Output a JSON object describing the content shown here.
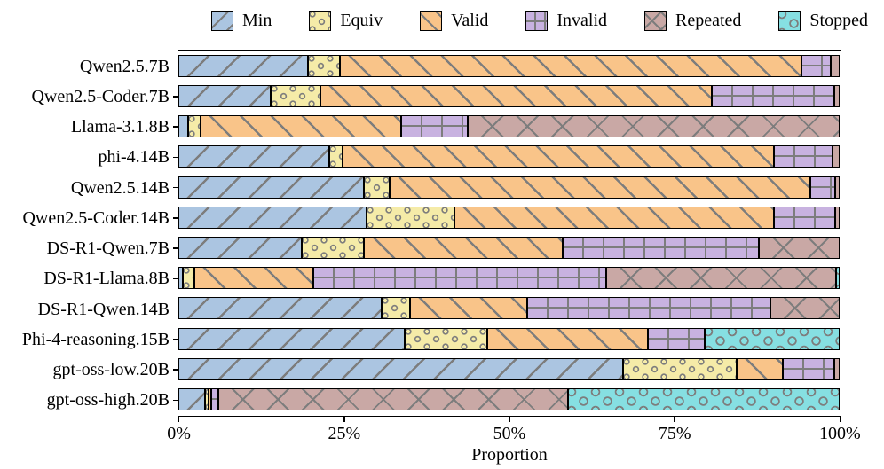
{
  "chart_data": {
    "type": "bar",
    "variant": "horizontal-stacked-percentage",
    "title": "",
    "xlabel": "Proportion",
    "ylabel": "",
    "xlim": [
      0,
      100
    ],
    "grid": false,
    "legend_position": "top",
    "x_ticks": [
      "0%",
      "25%",
      "50%",
      "75%",
      "100%"
    ],
    "x_tick_values": [
      0,
      25,
      50,
      75,
      100
    ],
    "categories": [
      "Qwen2.5.7B",
      "Qwen2.5-Coder.7B",
      "Llama-3.1.8B",
      "phi-4.14B",
      "Qwen2.5.14B",
      "Qwen2.5-Coder.14B",
      "DS-R1-Qwen.7B",
      "DS-R1-Llama.8B",
      "DS-R1-Qwen.14B",
      "Phi-4-reasoning.15B",
      "gpt-oss-low.20B",
      "gpt-oss-high.20B"
    ],
    "series": [
      {
        "name": "Min",
        "color": "#abc5e1",
        "hatch": "/",
        "values": [
          19.6,
          13.9,
          1.5,
          22.8,
          28.0,
          28.5,
          18.7,
          0.7,
          30.7,
          34.3,
          67.2,
          4.0
        ]
      },
      {
        "name": "Equiv",
        "color": "#f5eba8",
        "hatch": "o",
        "values": [
          4.9,
          7.6,
          1.8,
          2.1,
          3.9,
          13.2,
          9.4,
          1.7,
          4.4,
          12.4,
          17.3,
          0.5
        ]
      },
      {
        "name": "Valid",
        "color": "#f9c489",
        "hatch": "\\",
        "values": [
          69.7,
          59.2,
          30.4,
          65.2,
          63.7,
          48.4,
          30.0,
          18.0,
          17.7,
          24.3,
          7.0,
          0.5
        ]
      },
      {
        "name": "Invalid",
        "color": "#c8b2e0",
        "hatch": "+",
        "values": [
          4.5,
          18.5,
          10.1,
          8.9,
          3.7,
          9.3,
          29.7,
          44.3,
          36.8,
          8.6,
          7.7,
          1.0
        ]
      },
      {
        "name": "Repeated",
        "color": "#c9a8a5",
        "hatch": "x",
        "values": [
          1.3,
          0.8,
          56.2,
          1.0,
          0.7,
          0.6,
          12.2,
          34.8,
          10.4,
          0.0,
          0.8,
          53.0
        ]
      },
      {
        "name": "Stopped",
        "color": "#86dfe2",
        "hatch": "O",
        "values": [
          0.0,
          0.0,
          0.0,
          0.0,
          0.0,
          0.0,
          0.0,
          0.5,
          0.0,
          20.4,
          0.0,
          41.0
        ]
      }
    ],
    "hatch_color": "#7d7d7d",
    "bar_edge_color": "#000000",
    "background_color": "#ffffff"
  }
}
